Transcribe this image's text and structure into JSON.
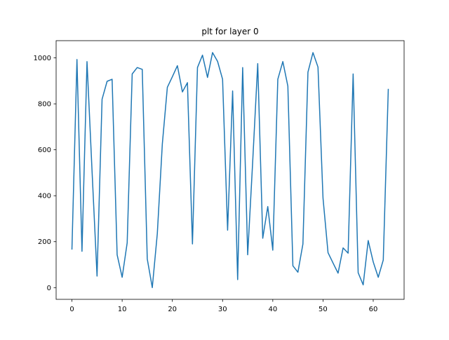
{
  "chart_data": {
    "type": "line",
    "title": "plt for layer 0",
    "xlabel": "",
    "ylabel": "",
    "xlim": [
      -3.15,
      66.15
    ],
    "ylim": [
      -51,
      1075
    ],
    "xticks": [
      0,
      10,
      20,
      30,
      40,
      50,
      60
    ],
    "yticks": [
      0,
      200,
      400,
      600,
      800,
      1000
    ],
    "grid": false,
    "series": [
      {
        "color": "#1f77b4",
        "x": [
          0,
          1,
          2,
          3,
          4,
          5,
          6,
          7,
          8,
          9,
          10,
          11,
          12,
          13,
          14,
          15,
          16,
          17,
          18,
          19,
          20,
          21,
          22,
          23,
          24,
          25,
          26,
          27,
          28,
          29,
          30,
          31,
          32,
          33,
          34,
          35,
          36,
          37,
          38,
          39,
          40,
          41,
          42,
          43,
          44,
          45,
          46,
          47,
          48,
          49,
          50,
          51,
          52,
          53,
          54,
          55,
          56,
          57,
          58,
          59,
          60,
          61,
          62,
          63
        ],
        "values": [
          168,
          993,
          158,
          984,
          510,
          50,
          820,
          898,
          907,
          143,
          45,
          195,
          930,
          958,
          950,
          125,
          0,
          235,
          625,
          872,
          918,
          966,
          852,
          892,
          190,
          958,
          1012,
          915,
          1023,
          985,
          907,
          250,
          856,
          35,
          958,
          143,
          550,
          975,
          215,
          353,
          163,
          907,
          984,
          877,
          95,
          67,
          190,
          938,
          1023,
          960,
          390,
          152,
          107,
          63,
          173,
          150,
          930,
          65,
          12,
          205,
          112,
          45,
          120,
          863
        ]
      }
    ]
  }
}
